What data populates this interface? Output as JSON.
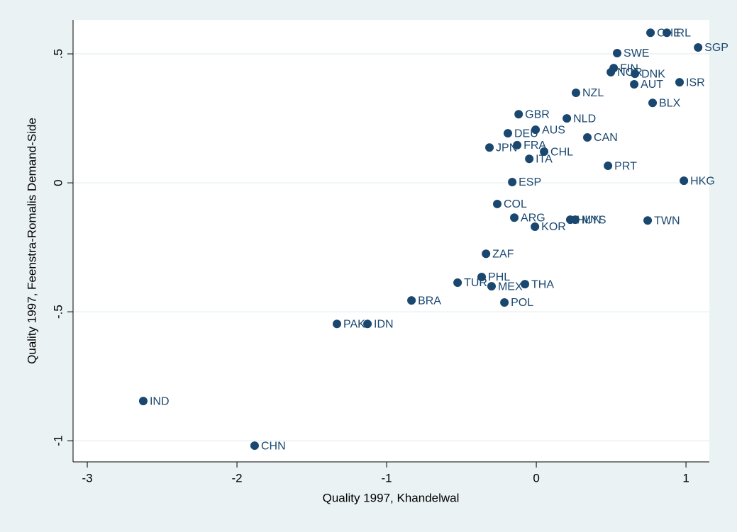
{
  "chart_data": {
    "type": "scatter",
    "x_label": "Quality 1997, Khandelwal",
    "y_label": "Quality 1997, Feenstra-Romalis Demand-Side",
    "color": "#1a476f",
    "grid": true,
    "labels": [
      "CHE",
      "IRL",
      "SGP",
      "SWE",
      "FIN",
      "NOR",
      "DNK",
      "ISR",
      "AUT",
      "NZL",
      "BLX",
      "GBR",
      "NLD",
      "AUS",
      "DEU",
      "CAN",
      "FRA",
      "JPN",
      "CHL",
      "ITA",
      "PRT",
      "HKG",
      "ESP",
      "COL",
      "ARG",
      "HUN",
      "MYS",
      "TWN",
      "KOR",
      "ZAF",
      "PHL",
      "TUR",
      "THA",
      "MEX",
      "BRA",
      "POL",
      "PAK",
      "IDN",
      "IND",
      "CHN"
    ],
    "x": [
      0.763,
      0.872,
      1.081,
      0.54,
      0.517,
      0.498,
      0.659,
      0.957,
      0.654,
      0.265,
      0.777,
      -0.118,
      0.204,
      -0.005,
      -0.19,
      0.341,
      -0.128,
      -0.313,
      0.052,
      -0.047,
      0.479,
      0.986,
      -0.161,
      -0.261,
      -0.147,
      0.227,
      0.26,
      0.744,
      -0.009,
      -0.336,
      -0.365,
      -0.526,
      -0.076,
      -0.299,
      -0.834,
      -0.213,
      -1.332,
      -1.128,
      -2.626,
      -1.882
    ],
    "values": [
      0.582,
      0.582,
      0.525,
      0.503,
      0.445,
      0.429,
      0.423,
      0.39,
      0.382,
      0.349,
      0.31,
      0.266,
      0.25,
      0.206,
      0.192,
      0.176,
      0.146,
      0.137,
      0.121,
      0.093,
      0.066,
      0.008,
      0.003,
      -0.082,
      -0.135,
      -0.143,
      -0.143,
      -0.146,
      -0.17,
      -0.275,
      -0.365,
      -0.387,
      -0.393,
      -0.401,
      -0.456,
      -0.464,
      -0.547,
      -0.547,
      -0.846,
      -1.019
    ],
    "xlim": [
      -3.095,
      1.156
    ],
    "ylim": [
      -1.082,
      0.632
    ],
    "xticks": [
      -3,
      -2,
      -1,
      0,
      1
    ],
    "yticks": [
      {
        "value": 0.5,
        "label": ".5"
      },
      0,
      {
        "value": -0.5,
        "label": "-.5"
      },
      -1
    ]
  }
}
